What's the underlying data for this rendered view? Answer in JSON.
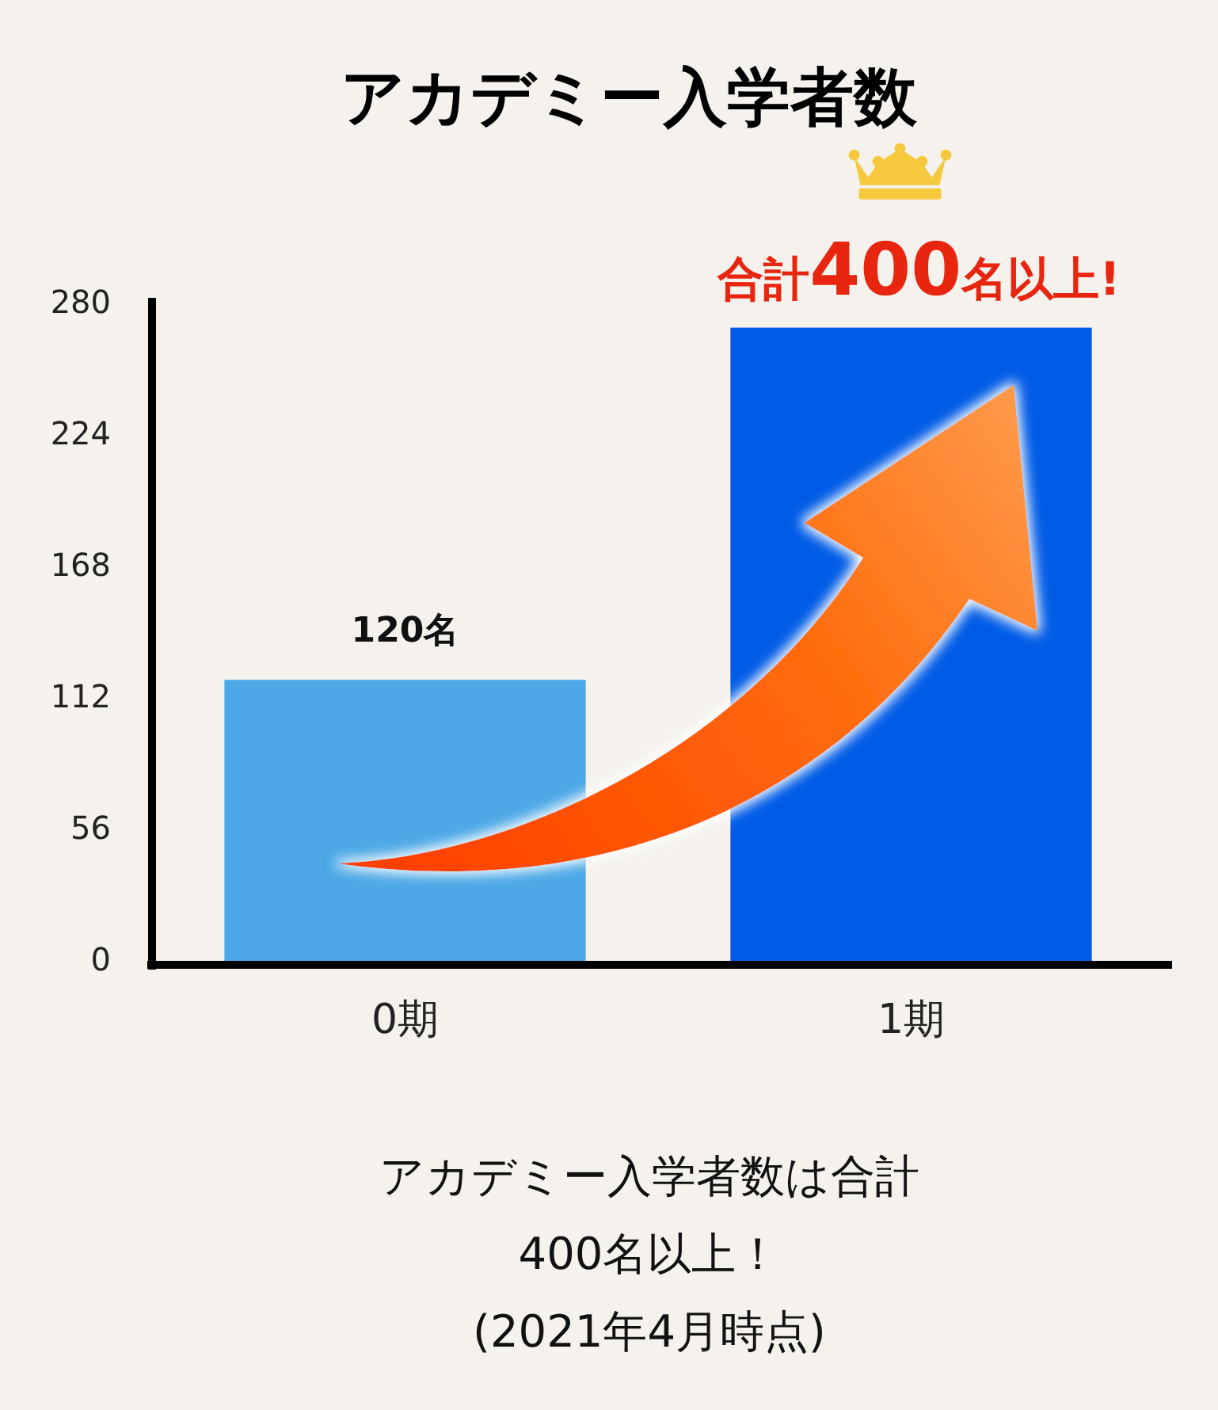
{
  "chart_data": {
    "type": "bar",
    "title": "アカデミー入学者数",
    "categories": [
      "0期",
      "1期"
    ],
    "values": [
      120,
      270
    ],
    "colors": [
      "#4ca8e6",
      "#005be6"
    ],
    "value_labels": [
      "120名",
      null
    ],
    "ylim": [
      0,
      280
    ],
    "yticks": [
      0,
      56,
      112,
      168,
      224,
      280
    ],
    "annotations": [
      {
        "text": "合計400名以上!",
        "x": "1期",
        "y": 270
      },
      "アカデミー入学者数は合計\n400名以上！\n(2021年4月時点)"
    ]
  }
}
